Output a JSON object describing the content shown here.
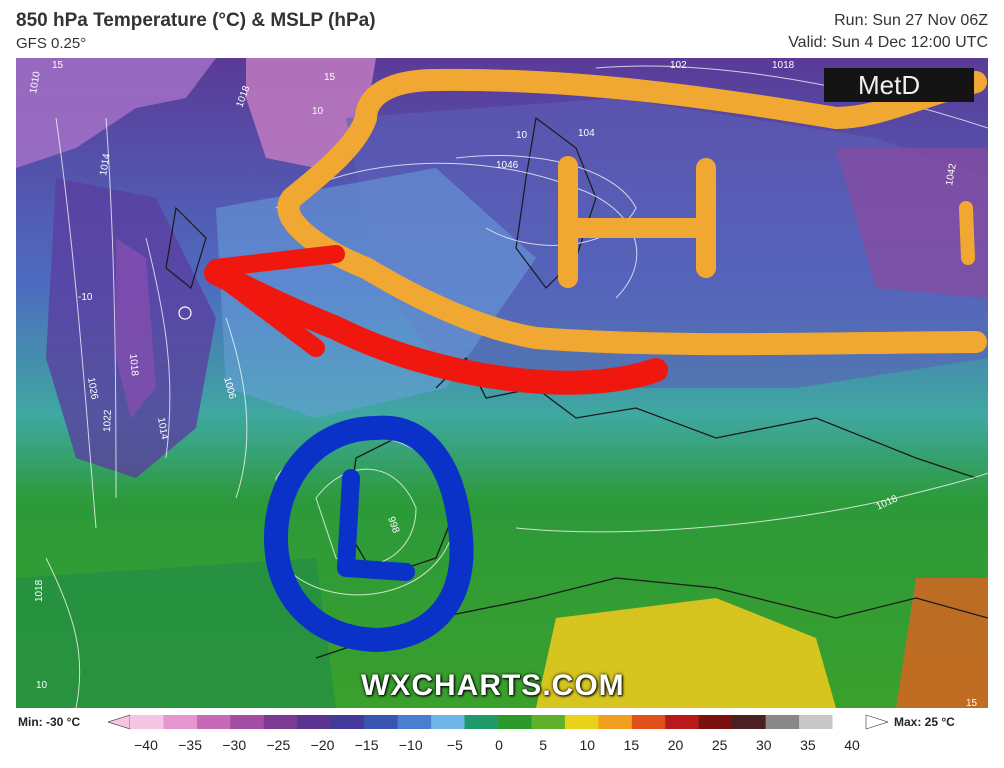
{
  "header": {
    "title": "850 hPa Temperature (°C) & MSLP (hPa)",
    "model": "GFS 0.25°",
    "run": "Run: Sun 27 Nov 06Z",
    "valid": "Valid: Sun 4 Dec 12:00 UTC"
  },
  "map": {
    "logo_text": "MetD",
    "watermark": "WXCHARTS.COM",
    "isobar_labels": [
      "15",
      "1010",
      "1014",
      "1018",
      "15",
      "10",
      "10",
      "1046",
      "104",
      "102",
      "1018",
      "1042",
      "-10",
      "1026",
      "1018",
      "1022",
      "1014",
      "1006",
      "998",
      "1018",
      "1018",
      "10",
      "15"
    ],
    "annotations": {
      "high_letter": "H",
      "low_letter": "L",
      "arrow_color": "#f0170f",
      "high_color": "#f0a833",
      "low_color": "#0a32c8"
    }
  },
  "legend": {
    "min_label": "Min: -30 °C",
    "max_label": "Max: 25 °C",
    "ticks": [
      "−40",
      "−35",
      "−30",
      "−25",
      "−20",
      "−15",
      "−10",
      "−5",
      "0",
      "5",
      "10",
      "15",
      "20",
      "25",
      "30",
      "35",
      "40"
    ],
    "colors": [
      "#f7c5e4",
      "#e596cf",
      "#c66ab8",
      "#a34ea3",
      "#7c3a92",
      "#5b3390",
      "#43399a",
      "#3a55b0",
      "#4a7fd0",
      "#6fb4e6",
      "#1f9a6a",
      "#2c9a2a",
      "#5fb02a",
      "#e8d21a",
      "#f0a020",
      "#e0501c",
      "#b81a1a",
      "#7a1010",
      "#4a2020",
      "#888888",
      "#c8c8c8",
      "#ffffff"
    ]
  }
}
